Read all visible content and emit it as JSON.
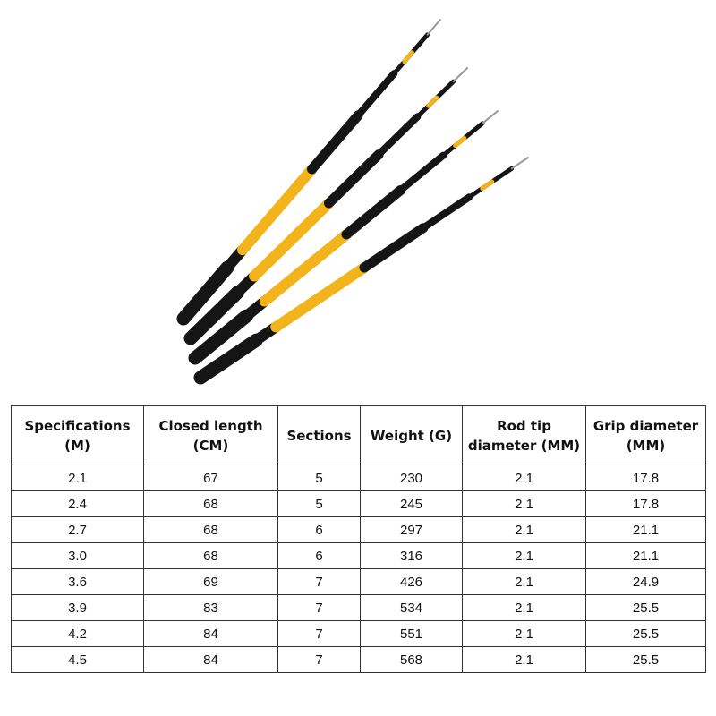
{
  "product_image": {
    "description_icon": "telescopic-fishing-rods",
    "rod_count": 4,
    "colors": {
      "yellow": "#f2b31b",
      "black": "#151515"
    }
  },
  "spec_table": {
    "headers": [
      "Specifications (M)",
      "Closed length (CM)",
      "Sections",
      "Weight (G)",
      "Rod tip diameter (MM)",
      "Grip diameter (MM)"
    ],
    "rows": [
      [
        "2.1",
        "67",
        "5",
        "230",
        "2.1",
        "17.8"
      ],
      [
        "2.4",
        "68",
        "5",
        "245",
        "2.1",
        "17.8"
      ],
      [
        "2.7",
        "68",
        "6",
        "297",
        "2.1",
        "21.1"
      ],
      [
        "3.0",
        "68",
        "6",
        "316",
        "2.1",
        "21.1"
      ],
      [
        "3.6",
        "69",
        "7",
        "426",
        "2.1",
        "24.9"
      ],
      [
        "3.9",
        "83",
        "7",
        "534",
        "2.1",
        "25.5"
      ],
      [
        "4.2",
        "84",
        "7",
        "551",
        "2.1",
        "25.5"
      ],
      [
        "4.5",
        "84",
        "7",
        "568",
        "2.1",
        "25.5"
      ]
    ]
  }
}
